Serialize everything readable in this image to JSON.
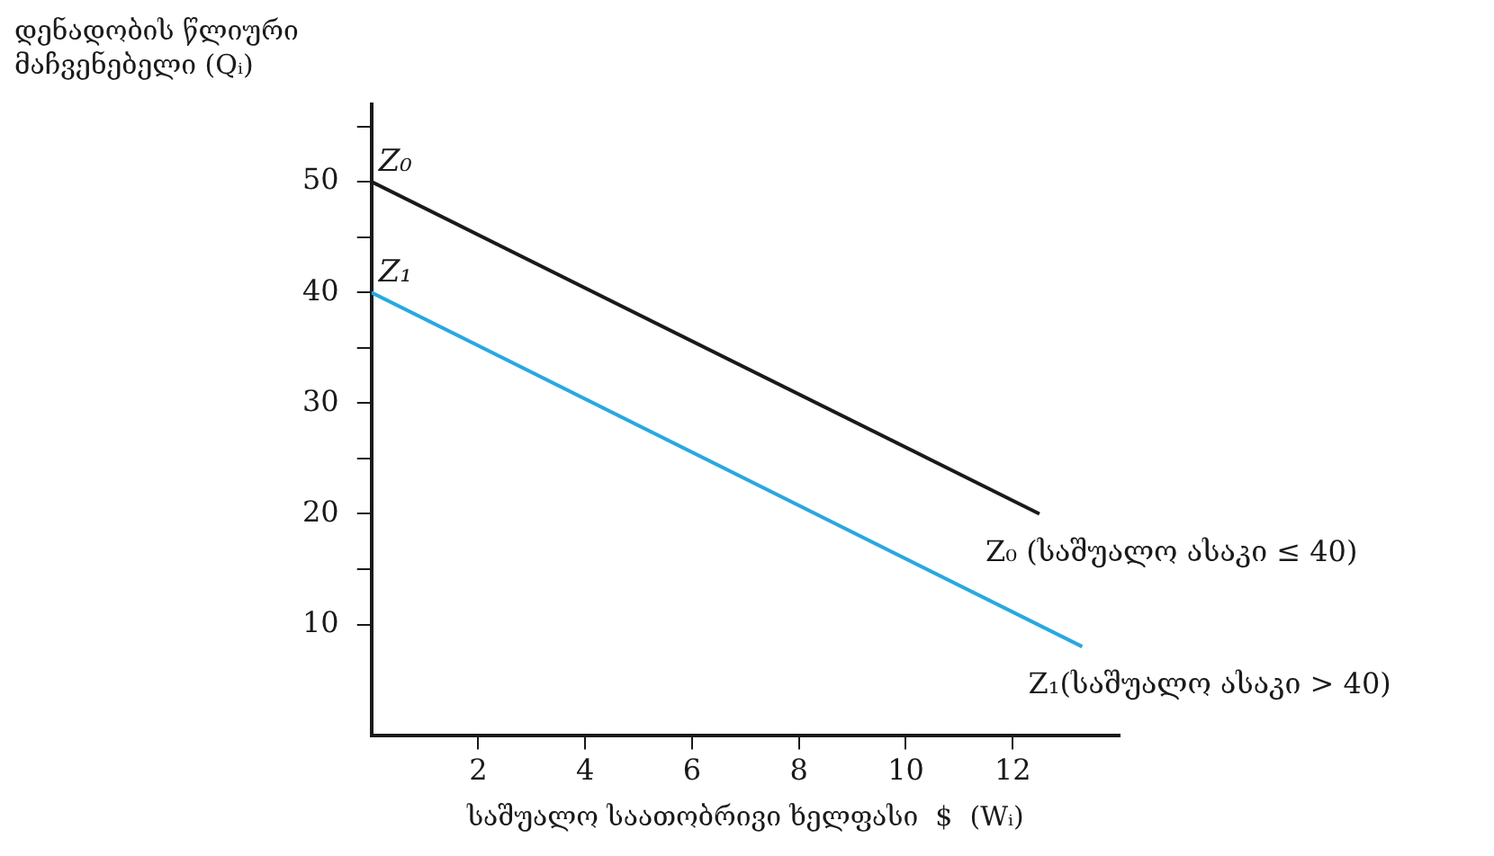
{
  "chart_data": {
    "type": "line",
    "xlabel": "საშუალო საათობრივი ხელფასი  $  (Wᵢ)",
    "ylabel": "დენადობის წლიური მაჩვენებელი   (Qᵢ)",
    "xlim": [
      0,
      14
    ],
    "ylim": [
      0,
      57
    ],
    "xticks": [
      2,
      4,
      6,
      8,
      10,
      12
    ],
    "yticks": [
      10,
      20,
      30,
      40,
      50,
      {
        "value": 15,
        "label": null
      },
      {
        "value": 25,
        "label": null
      },
      {
        "value": 35,
        "label": null
      },
      {
        "value": 45,
        "label": null
      },
      {
        "value": 55,
        "label": null
      }
    ],
    "grid": false,
    "legend": false,
    "marker": "none",
    "line_style": "solid",
    "series": [
      {
        "name": "Z₀ (საშუალო ასაკი ≤ 40)",
        "color": "#1a1a1a",
        "x": [
          0,
          12.5
        ],
        "values": [
          50,
          20
        ]
      },
      {
        "name": "Z₁(საშუალო ასაკი > 40)",
        "color": "#29a8e0",
        "x": [
          0,
          13.3
        ],
        "values": [
          40,
          8
        ]
      }
    ],
    "annotations": [
      {
        "text": "Z₀",
        "x": 0,
        "y": 50
      },
      {
        "text": "Z₁",
        "x": 0,
        "y": 40
      }
    ]
  }
}
